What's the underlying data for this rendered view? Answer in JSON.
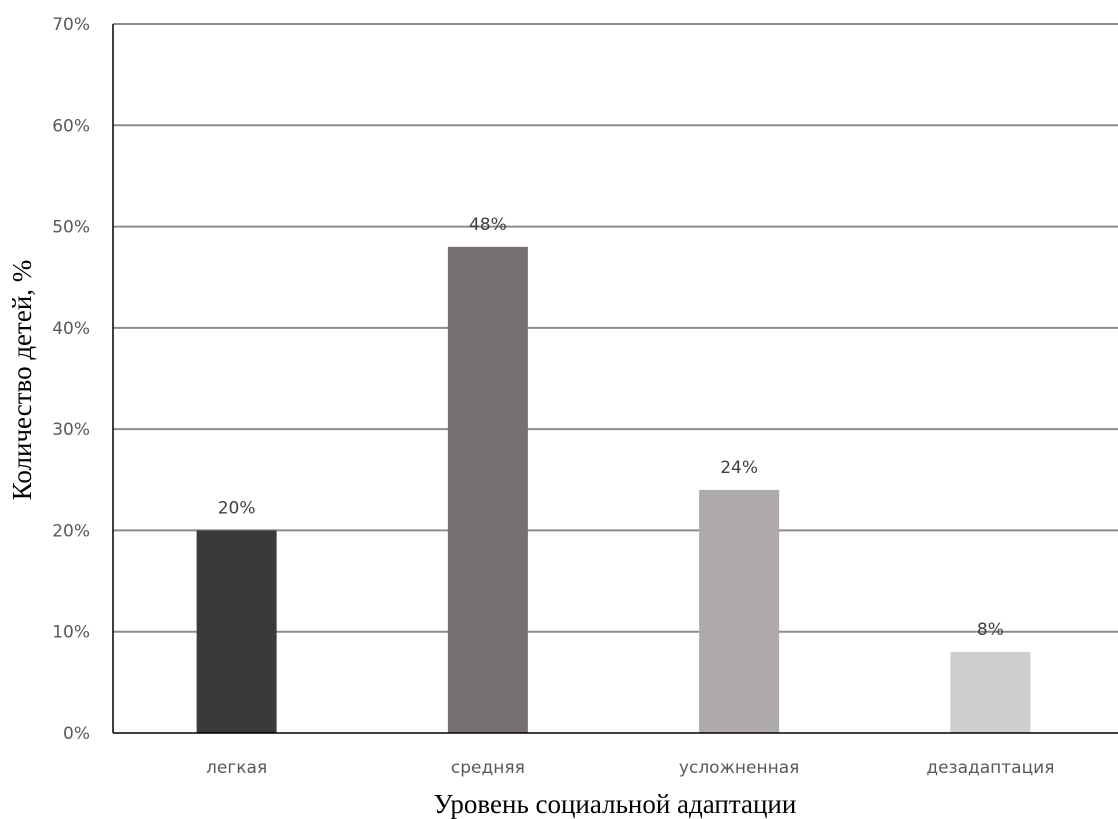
{
  "chart_data": {
    "type": "bar",
    "title": "",
    "xlabel": "Уровень социальной адаптации",
    "ylabel": "Количество детей, %",
    "categories": [
      "легкая",
      "средняя",
      "усложненная",
      "дезадаптация"
    ],
    "values": [
      20,
      48,
      24,
      8
    ],
    "value_labels": [
      "20%",
      "48%",
      "24%",
      "8%"
    ],
    "colors": [
      "#3b3a38",
      "#767170",
      "#aeaaa9",
      "#d0cecf"
    ],
    "ylim": [
      0,
      70
    ],
    "yticks": [
      {
        "value": 0,
        "label": "0%"
      },
      {
        "value": 10,
        "label": "10%"
      },
      {
        "value": 20,
        "label": "20%"
      },
      {
        "value": 30,
        "label": "30%"
      },
      {
        "value": 40,
        "label": "40%"
      },
      {
        "value": 50,
        "label": "50%"
      },
      {
        "value": 60,
        "label": "60%"
      },
      {
        "value": 70,
        "label": "70%"
      }
    ],
    "grid": true,
    "legend": "none",
    "gridline_color": "#8c8c8c",
    "axis_color": "#000000"
  }
}
